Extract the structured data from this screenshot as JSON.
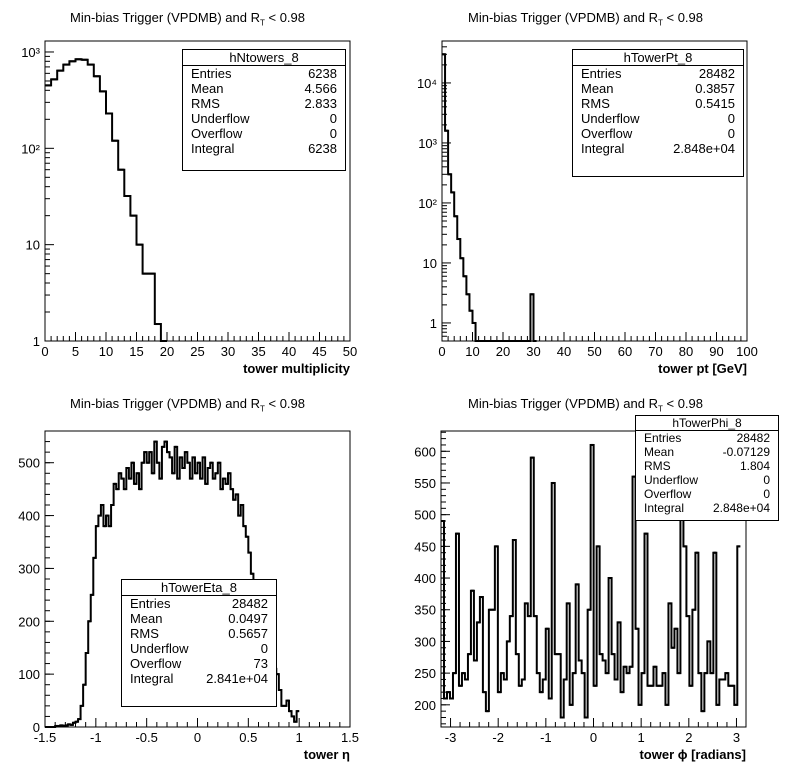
{
  "chart_data": [
    {
      "type": "histogram",
      "title_prefix": "Min-bias Trigger (VPDMB) and R",
      "title_sub": "T",
      "title_suffix": " < 0.98",
      "xlabel": "tower multiplicity",
      "ylabel": "",
      "log_y": true,
      "xlim": [
        0,
        50
      ],
      "ylim": [
        1,
        1300
      ],
      "x_ticks": [
        "0",
        "5",
        "10",
        "15",
        "20",
        "25",
        "30",
        "35",
        "40",
        "45",
        "50"
      ],
      "y_ticks": [
        "1",
        "10",
        "10²",
        "10³"
      ],
      "bin_edges": [
        0,
        1,
        2,
        3,
        4,
        5,
        6,
        7,
        8,
        9,
        10,
        11,
        12,
        13,
        14,
        15,
        16,
        17,
        18,
        19,
        20
      ],
      "counts": [
        450,
        520,
        640,
        740,
        800,
        840,
        830,
        740,
        560,
        390,
        230,
        120,
        60,
        32,
        20,
        10,
        5,
        5,
        1.5,
        1
      ],
      "stats": {
        "name": "hNtowers_8",
        "rows": [
          [
            "Entries",
            "6238"
          ],
          [
            "Mean",
            "4.566"
          ],
          [
            "RMS",
            "2.833"
          ],
          [
            "Underflow",
            "0"
          ],
          [
            "Overflow",
            "0"
          ],
          [
            "Integral",
            "6238"
          ]
        ]
      }
    },
    {
      "type": "histogram",
      "title_prefix": "Min-bias Trigger (VPDMB) and R",
      "title_sub": "T",
      "title_suffix": " < 0.98",
      "xlabel": "tower pt [GeV]",
      "ylabel": "",
      "log_y": true,
      "xlim": [
        0,
        100
      ],
      "ylim": [
        0.5,
        50000
      ],
      "x_ticks": [
        "0",
        "10",
        "20",
        "30",
        "40",
        "50",
        "60",
        "70",
        "80",
        "90",
        "100"
      ],
      "y_ticks": [
        "1",
        "10",
        "10²",
        "10³",
        "10⁴"
      ],
      "bin_edges": [
        0,
        1,
        2,
        3,
        4,
        5,
        6,
        7,
        8,
        9,
        10,
        11,
        12,
        13,
        14,
        15,
        16,
        17,
        18,
        19,
        20,
        21,
        22,
        23,
        24,
        25,
        26,
        27,
        28,
        29,
        30,
        31
      ],
      "counts": [
        30000,
        1600,
        300,
        150,
        60,
        25,
        12,
        6,
        3,
        1.6,
        1,
        0.4,
        0.4,
        0.4,
        0.4,
        0.4,
        0.4,
        0.4,
        0.4,
        0.4,
        0.4,
        0.4,
        0.4,
        0.4,
        0.4,
        0.4,
        0.4,
        0.4,
        0.4,
        3,
        0.4
      ],
      "stats": {
        "name": "hTowerPt_8",
        "rows": [
          [
            "Entries",
            "28482"
          ],
          [
            "Mean",
            "0.3857"
          ],
          [
            "RMS",
            "0.5415"
          ],
          [
            "Underflow",
            "0"
          ],
          [
            "Overflow",
            "0"
          ],
          [
            "Integral",
            "2.848e+04"
          ]
        ]
      }
    },
    {
      "type": "histogram",
      "title_prefix": "Min-bias Trigger (VPDMB) and R",
      "title_sub": "T",
      "title_suffix": " < 0.98",
      "xlabel": "tower η",
      "ylabel": "",
      "log_y": false,
      "xlim": [
        -1.5,
        1.5
      ],
      "ylim": [
        0,
        560
      ],
      "x_ticks": [
        "-1.5",
        "-1",
        "-0.5",
        "0",
        "0.5",
        "1",
        "1.5"
      ],
      "x_tick_values": [
        -1.5,
        -1,
        -0.5,
        0,
        0.5,
        1,
        1.5
      ],
      "y_ticks": [
        "0",
        "100",
        "200",
        "300",
        "400",
        "500"
      ],
      "y_tick_values": [
        0,
        100,
        200,
        300,
        400,
        500
      ],
      "hist_start": -1.5,
      "bin_width": 0.025,
      "counts": [
        0,
        0,
        0,
        0,
        2,
        2,
        3,
        2,
        3,
        5,
        4,
        8,
        10,
        15,
        40,
        80,
        140,
        200,
        250,
        320,
        380,
        400,
        420,
        380,
        400,
        380,
        420,
        460,
        450,
        480,
        470,
        450,
        490,
        470,
        500,
        460,
        480,
        450,
        500,
        520,
        500,
        520,
        480,
        540,
        500,
        470,
        530,
        540,
        520,
        510,
        480,
        530,
        470,
        510,
        490,
        520,
        500,
        470,
        510,
        480,
        500,
        470,
        510,
        460,
        490,
        500,
        470,
        480,
        500,
        450,
        470,
        460,
        480,
        450,
        430,
        440,
        400,
        420,
        380,
        360,
        330,
        290,
        240,
        170,
        110,
        80,
        70,
        60,
        90,
        110,
        110,
        100,
        70,
        40,
        40,
        50,
        30,
        20,
        10,
        30
      ],
      "stats": {
        "name": "hTowerEta_8",
        "rows": [
          [
            "Entries",
            "28482"
          ],
          [
            "Mean",
            "0.0497"
          ],
          [
            "RMS",
            "0.5657"
          ],
          [
            "Underflow",
            "0"
          ],
          [
            "Overflow",
            "73"
          ],
          [
            "Integral",
            "2.841e+04"
          ]
        ]
      }
    },
    {
      "type": "histogram",
      "title_prefix": "Min-bias Trigger (VPDMB) and R",
      "title_sub": "T",
      "title_suffix": " < 0.98",
      "xlabel": "tower ϕ [radians]",
      "ylabel": "",
      "log_y": false,
      "xlim": [
        -3.2,
        3.2
      ],
      "ylim": [
        165,
        632
      ],
      "x_ticks": [
        "-3",
        "-2",
        "-1",
        "0",
        "1",
        "2",
        "3"
      ],
      "x_tick_values": [
        -3,
        -2,
        -1,
        0,
        1,
        2,
        3
      ],
      "y_ticks": [
        "200",
        "250",
        "300",
        "350",
        "400",
        "450",
        "500",
        "550",
        "600"
      ],
      "y_tick_values": [
        200,
        250,
        300,
        350,
        400,
        450,
        500,
        550,
        600
      ],
      "hist_start": -3.2,
      "bin_width": 0.0628,
      "counts": [
        490,
        210,
        220,
        210,
        250,
        470,
        230,
        250,
        240,
        280,
        380,
        270,
        330,
        370,
        220,
        190,
        350,
        350,
        450,
        220,
        250,
        240,
        300,
        340,
        460,
        280,
        230,
        240,
        360,
        340,
        590,
        340,
        250,
        220,
        240,
        320,
        210,
        550,
        280,
        280,
        180,
        240,
        360,
        200,
        250,
        390,
        270,
        250,
        180,
        350,
        610,
        230,
        450,
        280,
        270,
        250,
        400,
        280,
        240,
        330,
        220,
        260,
        250,
        260,
        560,
        320,
        200,
        250,
        470,
        230,
        230,
        260,
        230,
        230,
        250,
        200,
        360,
        290,
        320,
        250,
        520,
        450,
        340,
        230,
        350,
        440,
        250,
        190,
        250,
        300,
        250,
        440,
        200,
        240,
        240,
        250,
        230,
        230,
        200,
        450
      ],
      "stats": {
        "name": "hTowerPhi_8",
        "rows": [
          [
            "Entries",
            "28482"
          ],
          [
            "Mean",
            "-0.07129"
          ],
          [
            "RMS",
            "1.804"
          ],
          [
            "Underflow",
            "0"
          ],
          [
            "Overflow",
            "0"
          ],
          [
            "Integral",
            "2.848e+04"
          ]
        ]
      }
    }
  ]
}
